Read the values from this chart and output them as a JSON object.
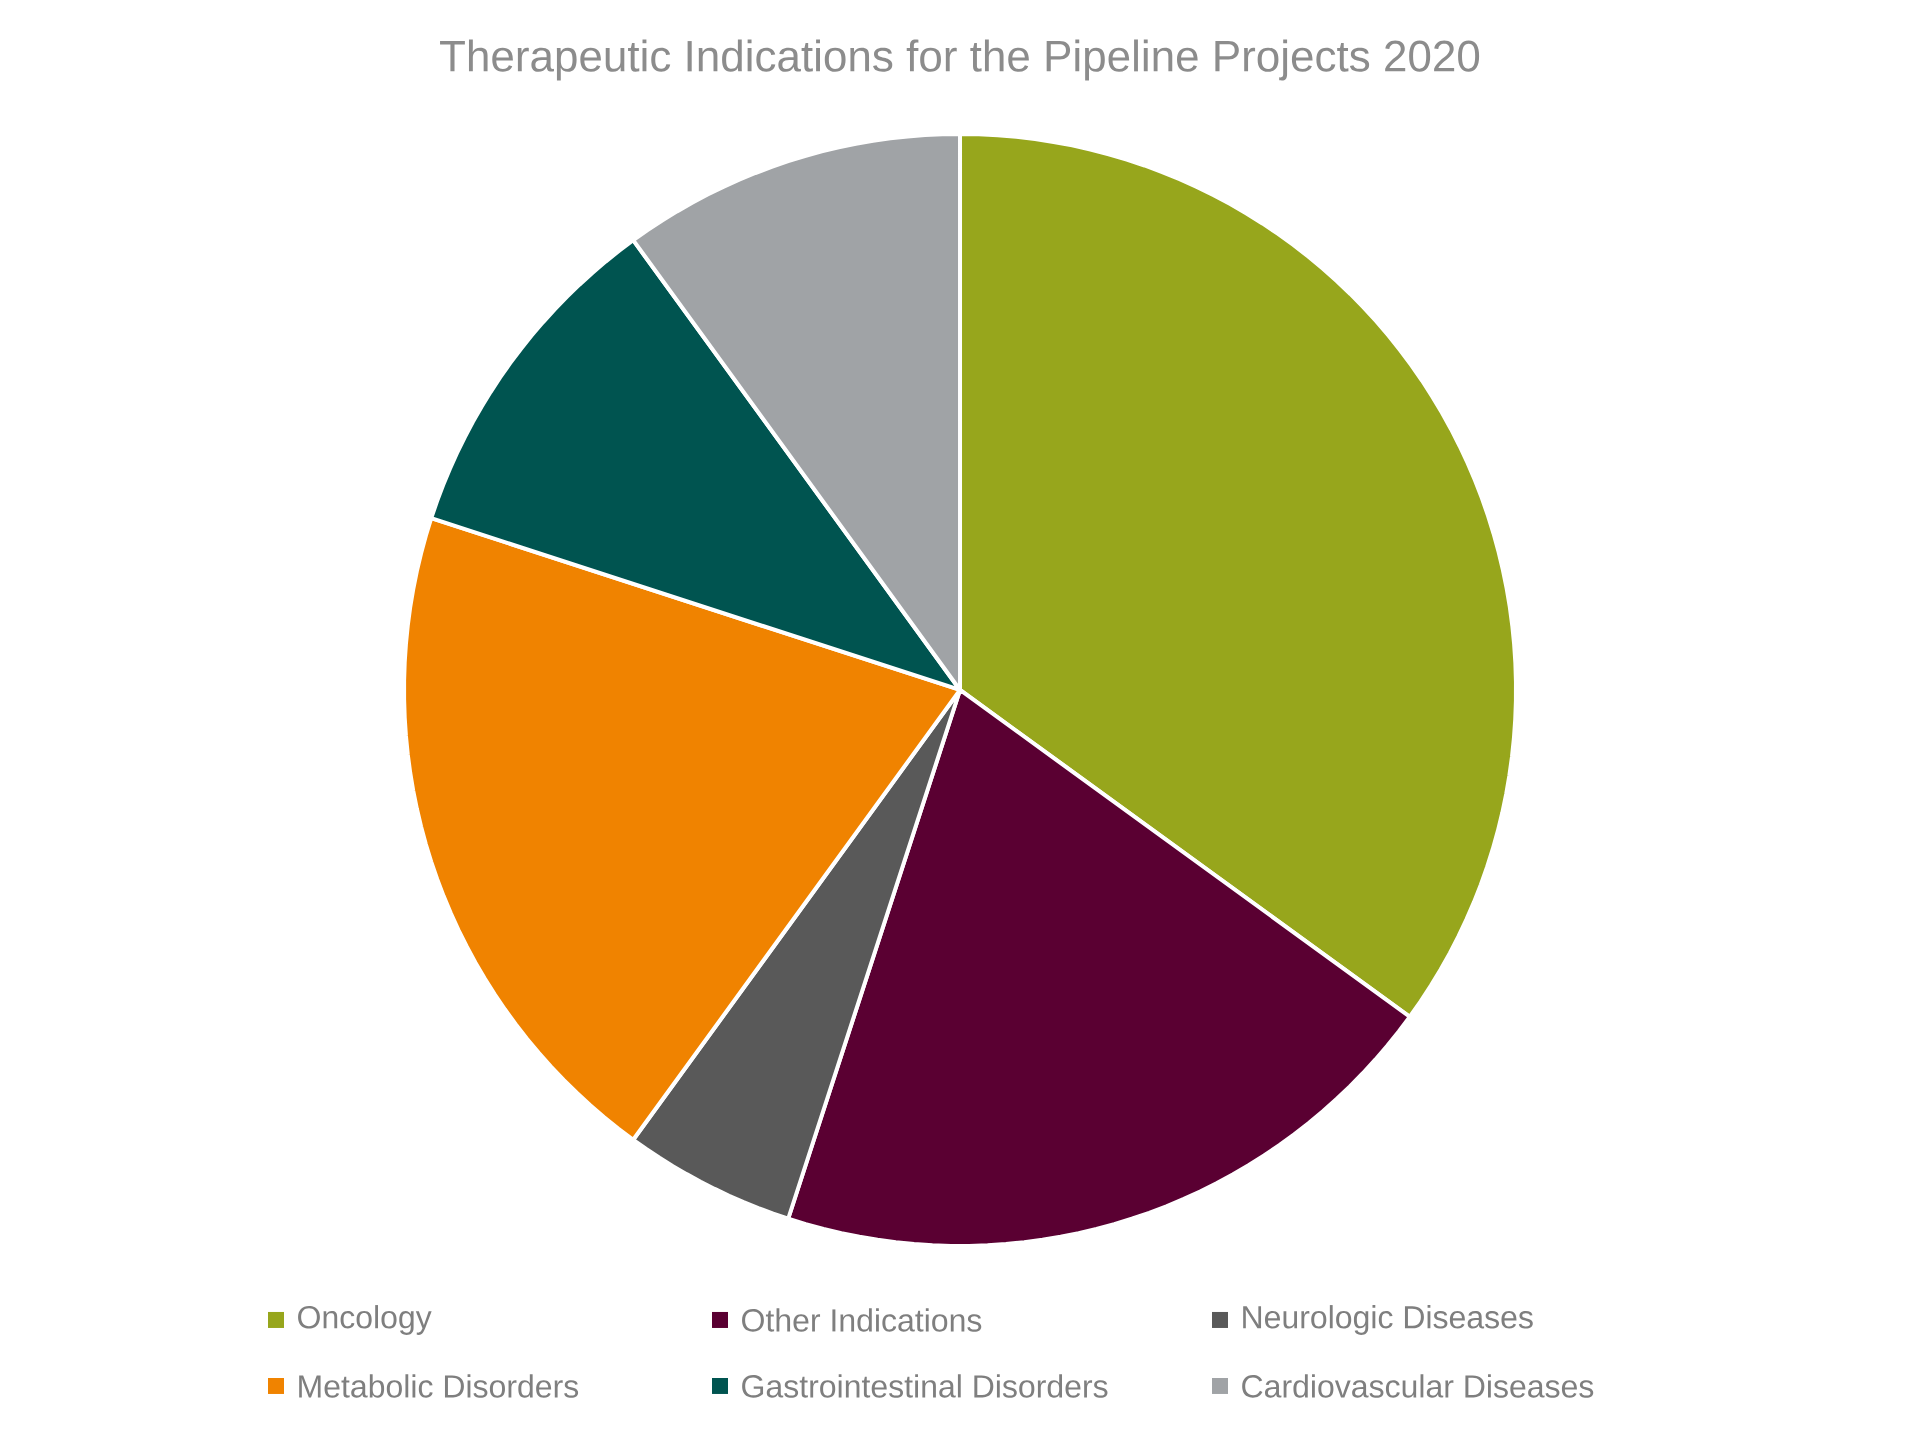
{
  "chart_data": {
    "type": "pie",
    "title": "Therapeutic Indications for the Pipeline Projects  2020",
    "categories": [
      "Oncology",
      "Other Indications",
      "Neurologic Diseases",
      "Metabolic Disorders",
      "Gastrointestinal Disorders",
      "Cardiovascular Diseases"
    ],
    "values": [
      35,
      20,
      5,
      20,
      10,
      10
    ],
    "colors": [
      "#97a61c",
      "#5a0032",
      "#595959",
      "#f08300",
      "#005450",
      "#a0a3a6"
    ],
    "legend": "bottom"
  }
}
